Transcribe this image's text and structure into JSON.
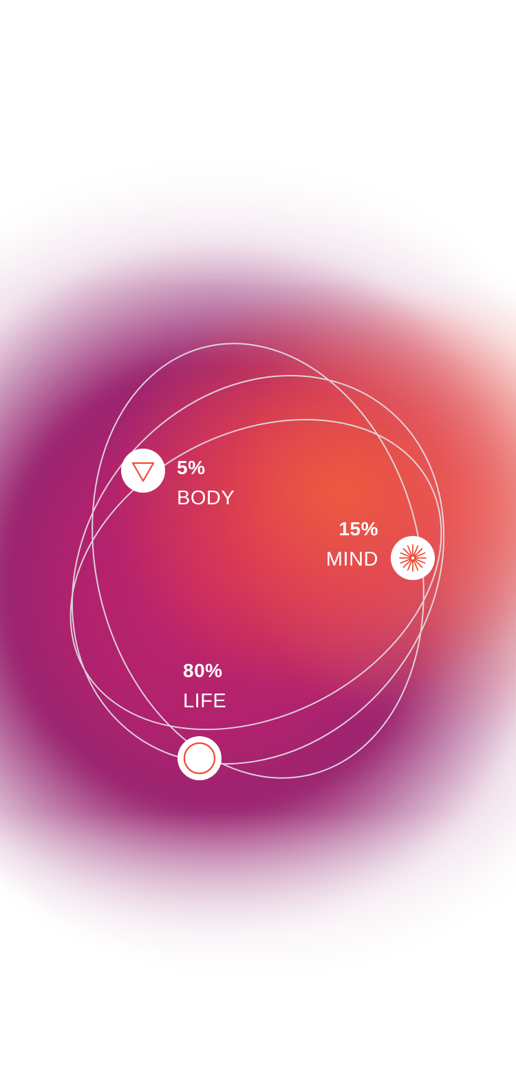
{
  "diagram": {
    "colors": {
      "accent": "#f04a32",
      "orbit_stroke": "#e4e4ea",
      "node_fill": "#ffffff",
      "text": "#ffffff"
    },
    "nodes": [
      {
        "id": "body",
        "percent": "5%",
        "label": "BODY",
        "icon": "triangle-down-icon"
      },
      {
        "id": "mind",
        "percent": "15%",
        "label": "MIND",
        "icon": "sunburst-icon"
      },
      {
        "id": "life",
        "percent": "80%",
        "label": "LIFE",
        "icon": "ring-icon"
      }
    ]
  }
}
